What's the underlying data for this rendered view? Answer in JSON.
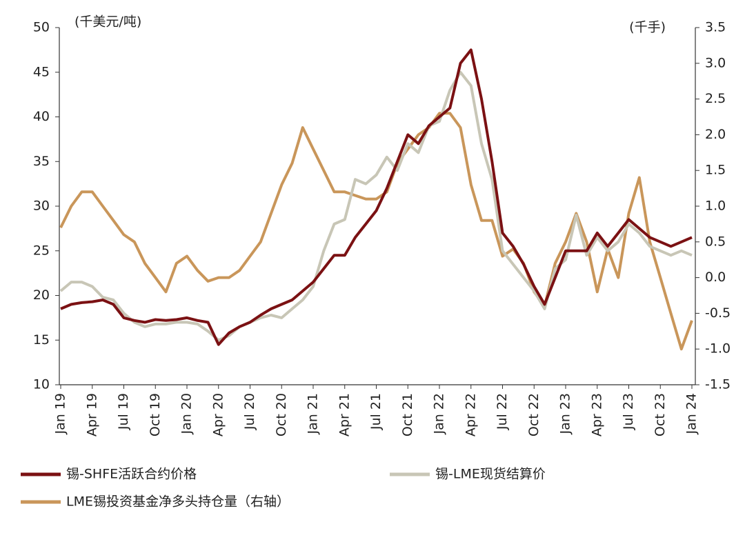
{
  "chart_data": {
    "type": "line",
    "y_label": "(千美元/吨)",
    "y2_label": "(千手)",
    "categories": [
      "Jan 19",
      null,
      null,
      "Apr 19",
      null,
      null,
      "Jul 19",
      null,
      null,
      "Oct 19",
      null,
      null,
      "Jan 20",
      null,
      null,
      "Apr 20",
      null,
      null,
      "Jul 20",
      null,
      null,
      "Oct 20",
      null,
      null,
      "Jan 21",
      null,
      null,
      "Apr 21",
      null,
      null,
      "Jul 21",
      null,
      null,
      "Oct 21",
      null,
      null,
      "Jan 22",
      null,
      null,
      "Apr 22",
      null,
      null,
      "Jul 22",
      null,
      null,
      "Oct 22",
      null,
      null,
      "Jan 23",
      null,
      null,
      "Apr 23",
      null,
      null,
      "Jul 23",
      null,
      null,
      "Oct 23",
      null,
      null,
      "Jan 24"
    ],
    "ylim": [
      10,
      50
    ],
    "yticks": [
      10,
      15,
      20,
      25,
      30,
      35,
      40,
      45,
      50
    ],
    "y2lim": [
      -1.5,
      3.5
    ],
    "y2ticks": [
      {
        "value": -1.5,
        "label": "-1.5"
      },
      {
        "value": -1,
        "label": "-1.0"
      },
      {
        "value": -0.5,
        "label": "-0.5"
      },
      {
        "value": 0,
        "label": "0.0"
      },
      {
        "value": 0.5,
        "label": "0.5"
      },
      {
        "value": 1,
        "label": "1.0"
      },
      {
        "value": 1.5,
        "label": "1.5"
      },
      {
        "value": 2,
        "label": "2.0"
      },
      {
        "value": 2.5,
        "label": "2.5"
      },
      {
        "value": 3,
        "label": "3.0"
      },
      {
        "value": 3.5,
        "label": "3.5"
      }
    ],
    "series": [
      {
        "name": "锡-SHFE活跃合约价格",
        "color": "#7b1113",
        "values": [
          18.5,
          19,
          19.2,
          19.3,
          19.5,
          19,
          17.5,
          17.2,
          17,
          17.3,
          17.2,
          17.3,
          17.5,
          17.2,
          17,
          14.5,
          15.8,
          16.5,
          17,
          17.8,
          18.5,
          19,
          19.5,
          20.5,
          21.5,
          23,
          24.5,
          24.5,
          26.5,
          28,
          29.5,
          32,
          35,
          38,
          37,
          39,
          40,
          41,
          46,
          47.5,
          42,
          35,
          27,
          25.5,
          23.5,
          21,
          19,
          22,
          25,
          25,
          25,
          27,
          25.5,
          27,
          28.5,
          27.5,
          26.5,
          26,
          25.5,
          26,
          26.5
        ]
      },
      {
        "name": "锡-LME现货结算价",
        "color": "#c8c6b6",
        "values": [
          20.5,
          21.5,
          21.5,
          21,
          19.8,
          19.5,
          18,
          17,
          16.5,
          16.8,
          16.8,
          17,
          17,
          16.8,
          16,
          15,
          15.5,
          16.5,
          17,
          17.5,
          17.8,
          17.5,
          18.5,
          19.5,
          21,
          25,
          28,
          28.5,
          33,
          32.5,
          33.5,
          35.5,
          34,
          37,
          36,
          39,
          39.5,
          43,
          45,
          43.5,
          37,
          33,
          25,
          23.5,
          22,
          20.5,
          18.5,
          23,
          24,
          29,
          24.5,
          26.5,
          25,
          26,
          28,
          27,
          25.5,
          25,
          24.5,
          25,
          24.5
        ]
      },
      {
        "name": "LME锡投资基金净多头持仓量（右轴）",
        "color": "#c9965a",
        "axis": "y2",
        "values": [
          0.7,
          1.0,
          1.2,
          1.2,
          1.0,
          0.8,
          0.6,
          0.5,
          0.2,
          0.0,
          -0.2,
          0.2,
          0.3,
          0.1,
          -0.05,
          0.0,
          0.0,
          0.1,
          0.3,
          0.5,
          0.9,
          1.3,
          1.6,
          2.1,
          1.8,
          1.5,
          1.2,
          1.2,
          1.15,
          1.1,
          1.1,
          1.2,
          1.6,
          1.8,
          2.0,
          2.1,
          2.3,
          2.3,
          2.1,
          1.3,
          0.8,
          0.8,
          0.3,
          0.4,
          0.2,
          -0.2,
          -0.4,
          0.2,
          0.5,
          0.9,
          0.5,
          -0.2,
          0.4,
          0.0,
          0.9,
          1.4,
          0.5,
          0.0,
          -0.5,
          -1.0,
          -0.6
        ]
      }
    ]
  }
}
